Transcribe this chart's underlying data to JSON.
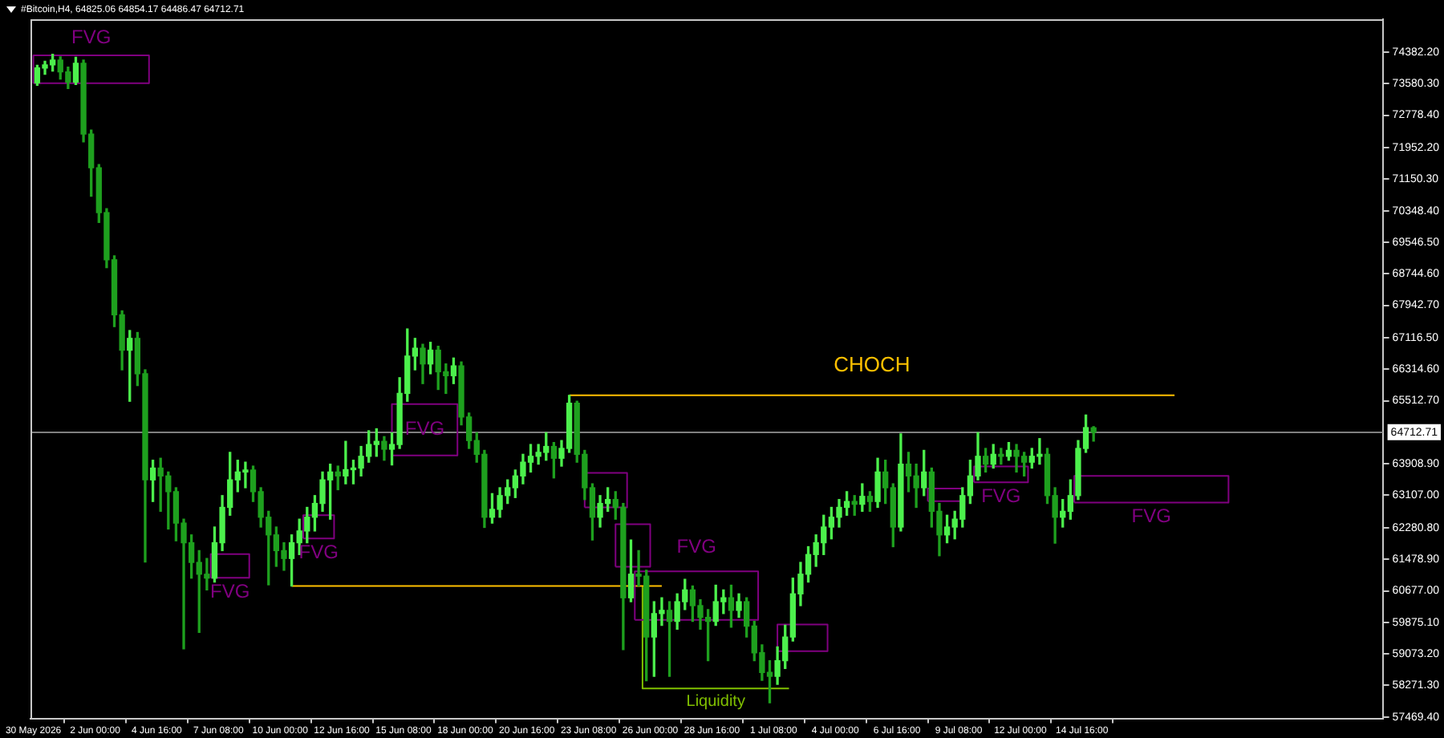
{
  "chart_data": {
    "type": "candlestick",
    "title": "#Bitcoin,H4, 64825.06 64854.17 64486.47 64712.71",
    "x": [
      "2026-05-30T12:00",
      "2026-05-30T20:00",
      "2026-05-31T04:00",
      "2026-05-31T12:00",
      "2026-05-31T20:00",
      "2026-06-01T04:00",
      "2026-06-01T12:00",
      "2026-06-01T20:00",
      "2026-06-02T04:00",
      "2026-06-02T12:00",
      "2026-06-02T20:00",
      "2026-06-03T04:00",
      "2026-06-03T12:00",
      "2026-06-03T20:00",
      "2026-06-04T04:00",
      "2026-06-04T12:00",
      "2026-06-04T20:00",
      "2026-06-05T04:00",
      "2026-06-05T12:00",
      "2026-06-05T20:00",
      "2026-06-06T04:00",
      "2026-06-06T12:00",
      "2026-06-06T20:00",
      "2026-06-07T04:00",
      "2026-06-07T12:00",
      "2026-06-07T20:00",
      "2026-06-08T04:00",
      "2026-06-08T12:00",
      "2026-06-08T20:00",
      "2026-06-09T04:00",
      "2026-06-09T12:00",
      "2026-06-09T20:00",
      "2026-06-10T04:00",
      "2026-06-10T12:00",
      "2026-06-10T20:00",
      "2026-06-11T04:00",
      "2026-06-11T12:00",
      "2026-06-11T20:00",
      "2026-06-12T04:00",
      "2026-06-12T12:00",
      "2026-06-12T20:00",
      "2026-06-13T04:00",
      "2026-06-13T12:00",
      "2026-06-13T20:00",
      "2026-06-14T04:00",
      "2026-06-14T12:00",
      "2026-06-14T20:00",
      "2026-06-15T04:00",
      "2026-06-15T12:00",
      "2026-06-15T20:00",
      "2026-06-16T04:00",
      "2026-06-16T12:00",
      "2026-06-16T20:00",
      "2026-06-17T04:00",
      "2026-06-17T12:00",
      "2026-06-17T20:00",
      "2026-06-18T04:00",
      "2026-06-18T12:00",
      "2026-06-18T20:00",
      "2026-06-19T04:00",
      "2026-06-19T12:00",
      "2026-06-19T20:00",
      "2026-06-20T04:00",
      "2026-06-20T12:00",
      "2026-06-20T20:00",
      "2026-06-21T04:00",
      "2026-06-21T12:00",
      "2026-06-21T20:00",
      "2026-06-22T04:00",
      "2026-06-22T12:00",
      "2026-06-22T20:00",
      "2026-06-23T04:00",
      "2026-06-23T12:00",
      "2026-06-23T20:00",
      "2026-06-24T04:00",
      "2026-06-24T12:00",
      "2026-06-24T20:00",
      "2026-06-25T04:00",
      "2026-06-25T12:00",
      "2026-06-25T20:00",
      "2026-06-26T04:00",
      "2026-06-26T12:00",
      "2026-06-26T20:00",
      "2026-06-27T04:00",
      "2026-06-27T12:00",
      "2026-06-27T20:00",
      "2026-06-28T04:00",
      "2026-06-28T12:00",
      "2026-06-28T20:00",
      "2026-06-29T04:00",
      "2026-06-29T12:00",
      "2026-06-29T20:00",
      "2026-06-30T04:00",
      "2026-06-30T12:00",
      "2026-06-30T20:00",
      "2026-07-01T04:00",
      "2026-07-01T12:00",
      "2026-07-01T20:00",
      "2026-07-02T04:00",
      "2026-07-02T12:00",
      "2026-07-02T20:00",
      "2026-07-03T04:00",
      "2026-07-03T12:00",
      "2026-07-03T20:00",
      "2026-07-04T04:00",
      "2026-07-04T12:00",
      "2026-07-04T20:00",
      "2026-07-05T04:00",
      "2026-07-05T12:00",
      "2026-07-05T20:00",
      "2026-07-06T04:00",
      "2026-07-06T12:00",
      "2026-07-06T20:00",
      "2026-07-07T04:00",
      "2026-07-07T12:00",
      "2026-07-07T20:00",
      "2026-07-08T04:00",
      "2026-07-08T12:00",
      "2026-07-08T20:00",
      "2026-07-09T04:00",
      "2026-07-09T12:00",
      "2026-07-09T20:00",
      "2026-07-10T04:00",
      "2026-07-10T12:00",
      "2026-07-10T20:00",
      "2026-07-11T04:00",
      "2026-07-11T12:00",
      "2026-07-11T20:00",
      "2026-07-12T04:00",
      "2026-07-12T12:00",
      "2026-07-12T20:00",
      "2026-07-13T04:00",
      "2026-07-13T12:00",
      "2026-07-13T20:00",
      "2026-07-14T04:00",
      "2026-07-14T12:00",
      "2026-07-14T20:00",
      "2026-07-15T04:00"
    ],
    "ohlc": [
      [
        73600,
        74050,
        73540,
        73980
      ],
      [
        73980,
        74150,
        73820,
        74060
      ],
      [
        74060,
        74330,
        73900,
        74180
      ],
      [
        74180,
        74260,
        73700,
        73880
      ],
      [
        73880,
        74000,
        73460,
        73620
      ],
      [
        73620,
        74250,
        73560,
        74100
      ],
      [
        74100,
        74180,
        72100,
        72300
      ],
      [
        72300,
        72400,
        70720,
        71440
      ],
      [
        71440,
        71520,
        70050,
        70300
      ],
      [
        70300,
        70400,
        68900,
        69100
      ],
      [
        69100,
        69200,
        67400,
        67700
      ],
      [
        67700,
        67800,
        66300,
        66800
      ],
      [
        66800,
        67300,
        65500,
        67100
      ],
      [
        67100,
        67250,
        65900,
        66200
      ],
      [
        66200,
        66300,
        61410,
        63500
      ],
      [
        63500,
        64000,
        62950,
        63800
      ],
      [
        63800,
        64050,
        62700,
        63600
      ],
      [
        63600,
        63700,
        62250,
        63200
      ],
      [
        63200,
        63300,
        61950,
        62400
      ],
      [
        62400,
        62500,
        59200,
        61900
      ],
      [
        61900,
        62100,
        61000,
        61400
      ],
      [
        61400,
        61700,
        59620,
        61100
      ],
      [
        61100,
        61500,
        60700,
        61000
      ],
      [
        61000,
        62300,
        60900,
        61900
      ],
      [
        61900,
        63100,
        61700,
        62800
      ],
      [
        62800,
        64200,
        62600,
        63500
      ],
      [
        63500,
        64000,
        63200,
        63700
      ],
      [
        63700,
        63950,
        63300,
        63750
      ],
      [
        63750,
        63850,
        62950,
        63200
      ],
      [
        63200,
        63300,
        62300,
        62550
      ],
      [
        62550,
        62700,
        60830,
        62100
      ],
      [
        62100,
        62300,
        61300,
        61700
      ],
      [
        61700,
        61900,
        61200,
        61500
      ],
      [
        61500,
        62100,
        60800,
        61900
      ],
      [
        61900,
        62500,
        61600,
        62200
      ],
      [
        62200,
        62800,
        61900,
        62550
      ],
      [
        62550,
        63100,
        62200,
        62900
      ],
      [
        62900,
        63700,
        62700,
        63500
      ],
      [
        63500,
        63900,
        62500,
        63700
      ],
      [
        63700,
        63850,
        63250,
        63600
      ],
      [
        63600,
        64480,
        63400,
        63760
      ],
      [
        63760,
        64000,
        63400,
        63800
      ],
      [
        63800,
        64350,
        63600,
        64100
      ],
      [
        64100,
        64750,
        63950,
        64400
      ],
      [
        64400,
        64800,
        64100,
        64480
      ],
      [
        64480,
        64600,
        64000,
        64280
      ],
      [
        64280,
        64700,
        63880,
        64400
      ],
      [
        64400,
        66100,
        64300,
        65700
      ],
      [
        65700,
        67340,
        65500,
        66650
      ],
      [
        66650,
        67100,
        66300,
        66850
      ],
      [
        66850,
        66950,
        65950,
        66450
      ],
      [
        66450,
        67000,
        66200,
        66800
      ],
      [
        66800,
        66900,
        65800,
        66250
      ],
      [
        66250,
        66450,
        65700,
        66150
      ],
      [
        66150,
        66600,
        65950,
        66400
      ],
      [
        66400,
        66500,
        64900,
        65100
      ],
      [
        65100,
        65200,
        64300,
        64500
      ],
      [
        64500,
        64700,
        63950,
        64150
      ],
      [
        64150,
        64250,
        62290,
        62550
      ],
      [
        62550,
        63150,
        62400,
        62750
      ],
      [
        62750,
        63300,
        62550,
        63100
      ],
      [
        63100,
        63500,
        62900,
        63300
      ],
      [
        63300,
        63750,
        63050,
        63600
      ],
      [
        63600,
        64150,
        63400,
        63950
      ],
      [
        63950,
        64400,
        63700,
        64100
      ],
      [
        64100,
        64400,
        63900,
        64200
      ],
      [
        64200,
        64700,
        64000,
        64350
      ],
      [
        64350,
        64450,
        63550,
        64050
      ],
      [
        64050,
        64500,
        63850,
        64300
      ],
      [
        64300,
        65650,
        64200,
        65450
      ],
      [
        65450,
        65500,
        63950,
        64150
      ],
      [
        64150,
        64250,
        63000,
        63300
      ],
      [
        63300,
        63400,
        61970,
        62550
      ],
      [
        62550,
        63100,
        62300,
        62900
      ],
      [
        62900,
        63300,
        62700,
        63000
      ],
      [
        63000,
        63200,
        62500,
        62800
      ],
      [
        62800,
        62900,
        59180,
        60500
      ],
      [
        60500,
        61970,
        60400,
        61100
      ],
      [
        61100,
        61700,
        60800,
        61050
      ],
      [
        61050,
        61200,
        58390,
        59500
      ],
      [
        59500,
        60400,
        58500,
        60100
      ],
      [
        60100,
        60500,
        59800,
        60180
      ],
      [
        60180,
        60400,
        58500,
        59900
      ],
      [
        59900,
        60600,
        59700,
        60400
      ],
      [
        60400,
        60970,
        60200,
        60700
      ],
      [
        60700,
        60800,
        59900,
        60300
      ],
      [
        60300,
        60450,
        59700,
        60000
      ],
      [
        60000,
        60200,
        58900,
        59900
      ],
      [
        59900,
        60820,
        59800,
        60400
      ],
      [
        60400,
        60700,
        60100,
        60500
      ],
      [
        60500,
        60820,
        59750,
        60180
      ],
      [
        60180,
        60600,
        60000,
        60400
      ],
      [
        60400,
        60500,
        59500,
        59780
      ],
      [
        59780,
        59900,
        58900,
        59100
      ],
      [
        59100,
        59300,
        58400,
        58600
      ],
      [
        58600,
        58900,
        57830,
        58500
      ],
      [
        58500,
        59250,
        58300,
        58900
      ],
      [
        58900,
        59800,
        58700,
        59500
      ],
      [
        59500,
        61000,
        59400,
        60600
      ],
      [
        60600,
        61400,
        60300,
        61100
      ],
      [
        61100,
        61800,
        60900,
        61600
      ],
      [
        61600,
        62100,
        61300,
        61900
      ],
      [
        61900,
        62600,
        61600,
        62300
      ],
      [
        62300,
        62800,
        62000,
        62550
      ],
      [
        62550,
        63000,
        62300,
        62800
      ],
      [
        62800,
        63200,
        62600,
        62950
      ],
      [
        62950,
        63100,
        62600,
        62880
      ],
      [
        62880,
        63400,
        62700,
        63080
      ],
      [
        63080,
        63200,
        62700,
        62950
      ],
      [
        62950,
        64050,
        62800,
        63700
      ],
      [
        63700,
        64000,
        62900,
        63300
      ],
      [
        63300,
        63400,
        61800,
        62300
      ],
      [
        62300,
        64670,
        62200,
        63900
      ],
      [
        63900,
        64200,
        63200,
        63600
      ],
      [
        63600,
        63900,
        62800,
        63300
      ],
      [
        63300,
        64250,
        63100,
        63700
      ],
      [
        63700,
        63800,
        62300,
        62700
      ],
      [
        62700,
        62900,
        61570,
        62100
      ],
      [
        62100,
        62600,
        61900,
        62300
      ],
      [
        62300,
        62700,
        62000,
        62500
      ],
      [
        62500,
        63300,
        62300,
        63100
      ],
      [
        63100,
        64000,
        62900,
        63600
      ],
      [
        63600,
        64700,
        63500,
        64100
      ],
      [
        64100,
        64300,
        63700,
        63900
      ],
      [
        63900,
        64400,
        63800,
        64150
      ],
      [
        64150,
        64300,
        63900,
        64100
      ],
      [
        64100,
        64450,
        64000,
        64250
      ],
      [
        64250,
        64400,
        63700,
        64100
      ],
      [
        64100,
        64200,
        63600,
        63950
      ],
      [
        63950,
        64300,
        63800,
        64100
      ],
      [
        64100,
        64550,
        63900,
        64150
      ],
      [
        64150,
        64300,
        62900,
        63100
      ],
      [
        63100,
        63300,
        61890,
        62550
      ],
      [
        62550,
        63000,
        62300,
        62700
      ],
      [
        62700,
        63500,
        62500,
        63100
      ],
      [
        63100,
        64500,
        63000,
        64300
      ],
      [
        64300,
        65150,
        64200,
        64830
      ],
      [
        64825.06,
        64854.17,
        64486.47,
        64712.71
      ]
    ],
    "colors": [
      "#4cf04c",
      "#4cf04c",
      "#4cf04c",
      "#1ea01e",
      "#1ea01e",
      "#4cf04c",
      "#1ea01e",
      "#1ea01e",
      "#1ea01e",
      "#1ea01e",
      "#1ea01e",
      "#1ea01e",
      "#4cf04c",
      "#1ea01e",
      "#1ea01e",
      "#4cf04c",
      "#1ea01e",
      "#1ea01e",
      "#1ea01e",
      "#1ea01e",
      "#1ea01e",
      "#1ea01e",
      "#1ea01e",
      "#4cf04c",
      "#4cf04c",
      "#4cf04c",
      "#4cf04c",
      "#4cf04c",
      "#1ea01e",
      "#1ea01e",
      "#1ea01e",
      "#1ea01e",
      "#1ea01e",
      "#4cf04c",
      "#4cf04c",
      "#4cf04c",
      "#4cf04c",
      "#4cf04c",
      "#4cf04c",
      "#1ea01e",
      "#4cf04c",
      "#4cf04c",
      "#4cf04c",
      "#4cf04c",
      "#4cf04c",
      "#1ea01e",
      "#4cf04c",
      "#4cf04c",
      "#4cf04c",
      "#4cf04c",
      "#1ea01e",
      "#4cf04c",
      "#1ea01e",
      "#1ea01e",
      "#4cf04c",
      "#1ea01e",
      "#1ea01e",
      "#1ea01e",
      "#1ea01e",
      "#4cf04c",
      "#4cf04c",
      "#4cf04c",
      "#4cf04c",
      "#4cf04c",
      "#4cf04c",
      "#4cf04c",
      "#4cf04c",
      "#1ea01e",
      "#4cf04c",
      "#4cf04c",
      "#1ea01e",
      "#1ea01e",
      "#1ea01e",
      "#4cf04c",
      "#4cf04c",
      "#1ea01e",
      "#1ea01e",
      "#4cf04c",
      "#1ea01e",
      "#1ea01e",
      "#4cf04c",
      "#4cf04c",
      "#1ea01e",
      "#4cf04c",
      "#4cf04c",
      "#1ea01e",
      "#1ea01e",
      "#1ea01e",
      "#4cf04c",
      "#4cf04c",
      "#1ea01e",
      "#4cf04c",
      "#1ea01e",
      "#1ea01e",
      "#1ea01e",
      "#1ea01e",
      "#4cf04c",
      "#4cf04c",
      "#4cf04c",
      "#4cf04c",
      "#4cf04c",
      "#4cf04c",
      "#4cf04c",
      "#4cf04c",
      "#4cf04c",
      "#4cf04c",
      "#1ea01e",
      "#4cf04c",
      "#1ea01e",
      "#4cf04c",
      "#1ea01e",
      "#1ea01e",
      "#4cf04c",
      "#1ea01e",
      "#1ea01e",
      "#4cf04c",
      "#1ea01e",
      "#1ea01e",
      "#4cf04c",
      "#4cf04c",
      "#4cf04c",
      "#4cf04c",
      "#4cf04c",
      "#1ea01e",
      "#4cf04c",
      "#1ea01e",
      "#4cf04c",
      "#1ea01e",
      "#1ea01e",
      "#4cf04c",
      "#4cf04c",
      "#1ea01e",
      "#1ea01e",
      "#4cf04c",
      "#4cf04c",
      "#4cf04c",
      "#4cf04c",
      "#1ea01e"
    ],
    "series": [
      {
        "type": "line",
        "name": "FVG",
        "color": "#800080",
        "x": [
          "2026-05-30T08:00",
          "2026-05-30T08:00",
          "2026-06-04T08:00",
          "2026-06-04T08:00"
        ],
        "values": [
          73590,
          74300,
          74300,
          73590
        ]
      },
      {
        "type": "line",
        "color": "#800080",
        "x": [
          "2026-05-30T08:00",
          "2026-06-04T08:00"
        ],
        "values": [
          73590,
          73590
        ]
      },
      {
        "type": "line",
        "name": "FVG",
        "color": "#800080",
        "x": [
          "2026-06-07T00:00",
          "2026-06-07T00:00",
          "2026-06-08T16:00",
          "2026-06-08T16:00"
        ],
        "values": [
          61010,
          61610,
          61610,
          61010
        ]
      },
      {
        "type": "line",
        "color": "#800080",
        "x": [
          "2026-06-07T00:00",
          "2026-06-08T16:00"
        ],
        "values": [
          61010,
          61010
        ]
      },
      {
        "type": "line",
        "name": "FVG",
        "color": "#800080",
        "x": [
          "2026-06-11T00:00",
          "2026-06-11T00:00",
          "2026-06-12T08:00",
          "2026-06-12T08:00"
        ],
        "values": [
          62010,
          62600,
          62600,
          62010
        ]
      },
      {
        "type": "line",
        "color": "#800080",
        "x": [
          "2026-06-11T00:00",
          "2026-06-12T08:00"
        ],
        "values": [
          62010,
          62010
        ]
      },
      {
        "type": "line",
        "name": "FVG",
        "color": "#800080",
        "x": [
          "2026-06-14T20:00",
          "2026-06-14T20:00",
          "2026-06-17T16:00",
          "2026-06-17T16:00"
        ],
        "values": [
          64120,
          65430,
          65430,
          64120
        ]
      },
      {
        "type": "line",
        "color": "#800080",
        "x": [
          "2026-06-14T20:00",
          "2026-06-17T16:00"
        ],
        "values": [
          64120,
          64120
        ]
      },
      {
        "type": "line",
        "color": "#800080",
        "x": [
          "2026-06-23T04:00",
          "2026-06-23T04:00",
          "2026-06-25T00:00",
          "2026-06-25T00:00"
        ],
        "values": [
          62800,
          63680,
          63680,
          62800
        ]
      },
      {
        "type": "line",
        "color": "#800080",
        "x": [
          "2026-06-23T04:00",
          "2026-06-25T00:00"
        ],
        "values": [
          62800,
          62800
        ]
      },
      {
        "type": "line",
        "color": "#800080",
        "x": [
          "2026-06-24T12:00",
          "2026-06-24T12:00",
          "2026-06-26T00:00",
          "2026-06-26T00:00"
        ],
        "values": [
          61290,
          62370,
          62370,
          61290
        ]
      },
      {
        "type": "line",
        "color": "#800080",
        "x": [
          "2026-06-24T12:00",
          "2026-06-26T00:00"
        ],
        "values": [
          61290,
          61290
        ]
      },
      {
        "type": "line",
        "name": "FVG",
        "color": "#800080",
        "x": [
          "2026-06-25T08:00",
          "2026-06-25T08:00",
          "2026-06-30T16:00",
          "2026-06-30T16:00"
        ],
        "values": [
          59940,
          61170,
          61170,
          59940
        ]
      },
      {
        "type": "line",
        "color": "#800080",
        "x": [
          "2026-06-25T08:00",
          "2026-06-30T16:00"
        ],
        "values": [
          59940,
          59940
        ]
      },
      {
        "type": "line",
        "color": "#800080",
        "x": [
          "2026-07-01T12:00",
          "2026-07-01T12:00",
          "2026-07-03T16:00",
          "2026-07-03T16:00"
        ],
        "values": [
          59140,
          59820,
          59820,
          59140
        ]
      },
      {
        "type": "line",
        "color": "#800080",
        "x": [
          "2026-07-01T12:00",
          "2026-07-03T16:00"
        ],
        "values": [
          59140,
          59140
        ]
      },
      {
        "type": "line",
        "color": "#800080",
        "x": [
          "2026-07-08T00:00",
          "2026-07-08T00:00",
          "2026-07-09T12:00",
          "2026-07-09T12:00"
        ],
        "values": [
          62960,
          63280,
          63280,
          62960
        ]
      },
      {
        "type": "line",
        "color": "#800080",
        "x": [
          "2026-07-08T00:00",
          "2026-07-09T12:00"
        ],
        "values": [
          62960,
          62960
        ]
      },
      {
        "type": "line",
        "name": "FVG",
        "color": "#800080",
        "x": [
          "2026-07-10T00:00",
          "2026-07-10T00:00",
          "2026-07-12T08:00",
          "2026-07-12T08:00"
        ],
        "values": [
          63440,
          63840,
          63840,
          63440
        ]
      },
      {
        "type": "line",
        "color": "#800080",
        "x": [
          "2026-07-10T00:00",
          "2026-07-12T08:00"
        ],
        "values": [
          63440,
          63440
        ]
      },
      {
        "type": "line",
        "name": "FVG",
        "color": "#800080",
        "x": [
          "2026-07-14T08:00",
          "2026-07-14T08:00",
          "2026-07-21T00:00",
          "2026-07-21T00:00"
        ],
        "values": [
          62920,
          63600,
          63600,
          62920
        ]
      },
      {
        "type": "line",
        "color": "#800080",
        "x": [
          "2026-07-14T08:00",
          "2026-07-21T00:00"
        ],
        "values": [
          62920,
          62920
        ]
      },
      {
        "type": "line",
        "name": "CHOCH",
        "color": "#ffc000",
        "x": [
          "2026-06-22T12:00",
          "2026-07-18T16:00"
        ],
        "values": [
          65650,
          65650
        ]
      },
      {
        "type": "line",
        "color": "#ffc000",
        "x": [
          "2026-06-10T12:00",
          "2026-06-26T12:00"
        ],
        "values": [
          60800,
          60800
        ]
      },
      {
        "type": "line",
        "name": "Liquidity",
        "color": "#80c000",
        "x": [
          "2026-06-25T16:00",
          "2026-06-25T16:00",
          "2026-07-02T00:00"
        ],
        "values": [
          60770,
          58190,
          58190
        ]
      }
    ],
    "xlim": [
      "2026-05-30T05:00",
      "2026-07-27T16:00"
    ],
    "xticks": [
      {
        "value": "2026-05-30T08:00",
        "label": "30 May 2026"
      },
      {
        "value": "2026-06-02T00:00",
        "label": "2 Jun 00:00"
      },
      {
        "value": "2026-06-04T16:00",
        "label": "4 Jun 16:00"
      },
      {
        "value": "2026-06-07T08:00",
        "label": "7 Jun 08:00"
      },
      {
        "value": "2026-06-10T00:00",
        "label": "10 Jun 00:00"
      },
      {
        "value": "2026-06-12T16:00",
        "label": "12 Jun 16:00"
      },
      {
        "value": "2026-06-15T08:00",
        "label": "15 Jun 08:00"
      },
      {
        "value": "2026-06-18T00:00",
        "label": "18 Jun 00:00"
      },
      {
        "value": "2026-06-20T16:00",
        "label": "20 Jun 16:00"
      },
      {
        "value": "2026-06-23T08:00",
        "label": "23 Jun 08:00"
      },
      {
        "value": "2026-06-26T00:00",
        "label": "26 Jun 00:00"
      },
      {
        "value": "2026-06-28T16:00",
        "label": "28 Jun 16:00"
      },
      {
        "value": "2026-07-01T08:00",
        "label": "1 Jul 08:00"
      },
      {
        "value": "2026-07-04T00:00",
        "label": "4 Jul 00:00"
      },
      {
        "value": "2026-07-06T16:00",
        "label": "6 Jul 16:00"
      },
      {
        "value": "2026-07-09T08:00",
        "label": "9 Jul 08:00"
      },
      {
        "value": "2026-07-12T00:00",
        "label": "12 Jul 00:00"
      },
      {
        "value": "2026-07-14T16:00",
        "label": "14 Jul 16:00"
      }
    ],
    "ylim": [
      57430,
      75220
    ],
    "yticks": [
      {
        "value": 74382.2,
        "label": "74382.20"
      },
      {
        "value": 73580.3,
        "label": "73580.30"
      },
      {
        "value": 72778.4,
        "label": "72778.40"
      },
      {
        "value": 71952.2,
        "label": "71952.20"
      },
      {
        "value": 71150.3,
        "label": "71150.30"
      },
      {
        "value": 70348.4,
        "label": "70348.40"
      },
      {
        "value": 69546.5,
        "label": "69546.50"
      },
      {
        "value": 68744.6,
        "label": "68744.60"
      },
      {
        "value": 67942.7,
        "label": "67942.70"
      },
      {
        "value": 67116.5,
        "label": "67116.50"
      },
      {
        "value": 66314.6,
        "label": "66314.60"
      },
      {
        "value": 65512.7,
        "label": "65512.70"
      },
      {
        "value": 63908.9,
        "label": "63908.90"
      },
      {
        "value": 63107,
        "label": "63107.00"
      },
      {
        "value": 62280.8,
        "label": "62280.80"
      },
      {
        "value": 61478.9,
        "label": "61478.90"
      },
      {
        "value": 60677,
        "label": "60677.00"
      },
      {
        "value": 59875.1,
        "label": "59875.10"
      },
      {
        "value": 59073.2,
        "label": "59073.20"
      },
      {
        "value": 58271.3,
        "label": "58271.30"
      },
      {
        "value": 57469.4,
        "label": "57469.40"
      }
    ],
    "ref_lines": [
      {
        "axis": "y",
        "value": 64712.71,
        "label": "64712.71",
        "color": "#808080"
      }
    ]
  }
}
